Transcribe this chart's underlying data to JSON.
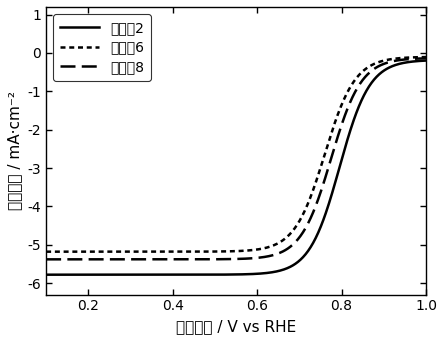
{
  "xlabel": "电极电势 / V vs RHE",
  "ylabel": "电流密度 / mA·cm⁻²",
  "xlim": [
    0.1,
    1.0
  ],
  "ylim": [
    -6.3,
    1.2
  ],
  "xticks": [
    0.2,
    0.4,
    0.6,
    0.8,
    1.0
  ],
  "yticks": [
    -6,
    -5,
    -4,
    -3,
    -2,
    -1,
    0,
    1
  ],
  "legend_labels": [
    "实施例2",
    "实施例6",
    "实施例8"
  ],
  "line_color": "#000000",
  "line_width": 1.8,
  "curve2_limit": -5.78,
  "curve6_limit": -5.18,
  "curve8_limit": -5.38,
  "curve2_half": 0.795,
  "curve6_half": 0.76,
  "curve8_half": 0.775,
  "curve2_steep": 28,
  "curve6_steep": 28,
  "curve8_steep": 28
}
